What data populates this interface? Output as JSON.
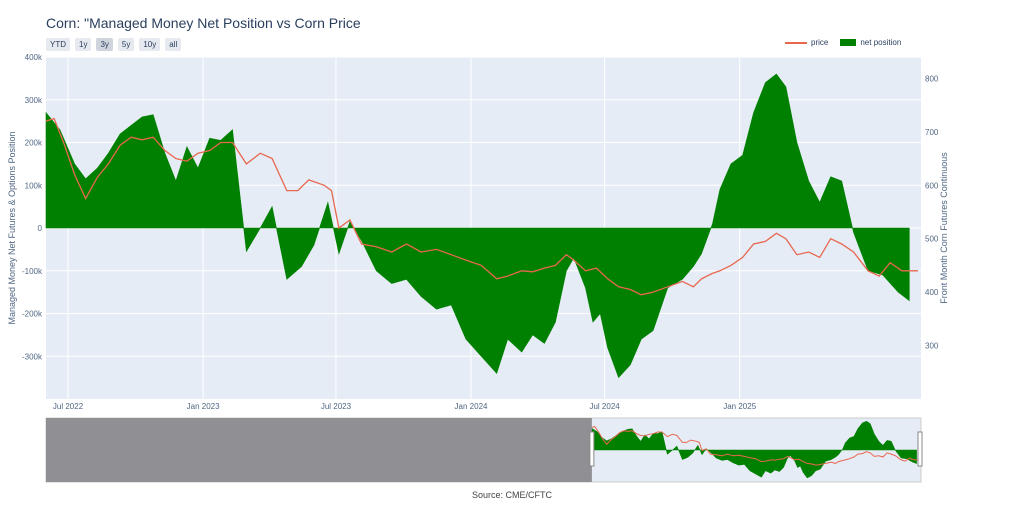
{
  "title": "Corn: \"Managed Money Net Position vs Corn Price",
  "range_buttons": [
    "YTD",
    "1y",
    "3y",
    "5y",
    "10y",
    "all"
  ],
  "active_range": "3y",
  "legend": {
    "price": "price",
    "net_position": "net position"
  },
  "source": "Source: CME/CFTC",
  "colors": {
    "price": "#e8674f",
    "net_position": "#008000",
    "plot_bg": "#e5ecf6",
    "grid": "#ffffff"
  },
  "chart_data": {
    "type": "area",
    "x_axis": {
      "type": "date",
      "range": [
        "2022-06-01",
        "2025-09-05"
      ],
      "ticks": [
        "2022-07-01",
        "2023-01-01",
        "2023-07-01",
        "2024-01-01",
        "2024-07-01",
        "2025-01-01"
      ],
      "tick_labels": [
        "Jul 2022",
        "Jan 2023",
        "Jul 2023",
        "Jan 2024",
        "Jul 2024",
        "Jan 2025"
      ]
    },
    "y_left": {
      "label": "Managed Money Net Futures & Options Position",
      "range": [
        -400000,
        400000
      ],
      "ticks": [
        -300000,
        -200000,
        -100000,
        0,
        100000,
        200000,
        300000,
        400000
      ],
      "tick_labels": [
        "-300k",
        "-200k",
        "-100k",
        "0",
        "100k",
        "200k",
        "300k",
        "400k"
      ]
    },
    "y_right": {
      "label": "Front Month Corn Futures Continuous",
      "range": [
        200,
        840
      ],
      "ticks": [
        300,
        400,
        500,
        600,
        700,
        800
      ],
      "tick_labels": [
        "300",
        "400",
        "500",
        "600",
        "700",
        "800"
      ]
    },
    "grid": true,
    "legend_position": "top-right",
    "series": [
      {
        "name": "net position",
        "kind": "area",
        "axis": "left",
        "points": [
          [
            "2022-06-01",
            270000
          ],
          [
            "2022-06-20",
            230000
          ],
          [
            "2022-07-10",
            150000
          ],
          [
            "2022-07-25",
            115000
          ],
          [
            "2022-08-10",
            140000
          ],
          [
            "2022-08-25",
            175000
          ],
          [
            "2022-09-10",
            220000
          ],
          [
            "2022-09-25",
            240000
          ],
          [
            "2022-10-10",
            260000
          ],
          [
            "2022-10-25",
            265000
          ],
          [
            "2022-11-10",
            175000
          ],
          [
            "2022-11-25",
            110000
          ],
          [
            "2022-12-10",
            190000
          ],
          [
            "2022-12-25",
            140000
          ],
          [
            "2023-01-10",
            210000
          ],
          [
            "2023-01-25",
            205000
          ],
          [
            "2023-02-10",
            230000
          ],
          [
            "2023-02-20",
            80000
          ],
          [
            "2023-03-01",
            -55000
          ],
          [
            "2023-03-20",
            0
          ],
          [
            "2023-04-05",
            50000
          ],
          [
            "2023-04-25",
            -120000
          ],
          [
            "2023-05-15",
            -90000
          ],
          [
            "2023-06-01",
            -40000
          ],
          [
            "2023-06-20",
            60000
          ],
          [
            "2023-07-05",
            -60000
          ],
          [
            "2023-07-20",
            15000
          ],
          [
            "2023-08-05",
            -30000
          ],
          [
            "2023-08-25",
            -100000
          ],
          [
            "2023-09-15",
            -130000
          ],
          [
            "2023-10-05",
            -120000
          ],
          [
            "2023-10-25",
            -160000
          ],
          [
            "2023-11-15",
            -190000
          ],
          [
            "2023-12-05",
            -180000
          ],
          [
            "2023-12-25",
            -260000
          ],
          [
            "2024-01-15",
            -300000
          ],
          [
            "2024-02-05",
            -340000
          ],
          [
            "2024-02-20",
            -260000
          ],
          [
            "2024-03-10",
            -290000
          ],
          [
            "2024-03-25",
            -250000
          ],
          [
            "2024-04-10",
            -270000
          ],
          [
            "2024-04-25",
            -220000
          ],
          [
            "2024-05-10",
            -100000
          ],
          [
            "2024-05-20",
            -70000
          ],
          [
            "2024-06-05",
            -140000
          ],
          [
            "2024-06-15",
            -220000
          ],
          [
            "2024-06-25",
            -200000
          ],
          [
            "2024-07-05",
            -280000
          ],
          [
            "2024-07-20",
            -350000
          ],
          [
            "2024-08-05",
            -320000
          ],
          [
            "2024-08-20",
            -260000
          ],
          [
            "2024-09-05",
            -240000
          ],
          [
            "2024-09-25",
            -140000
          ],
          [
            "2024-10-15",
            -120000
          ],
          [
            "2024-10-30",
            -90000
          ],
          [
            "2024-11-10",
            -60000
          ],
          [
            "2024-11-25",
            10000
          ],
          [
            "2024-12-05",
            90000
          ],
          [
            "2024-12-20",
            150000
          ],
          [
            "2025-01-05",
            170000
          ],
          [
            "2025-01-20",
            270000
          ],
          [
            "2025-02-05",
            340000
          ],
          [
            "2025-02-20",
            360000
          ],
          [
            "2025-03-05",
            330000
          ],
          [
            "2025-03-20",
            200000
          ],
          [
            "2025-04-05",
            110000
          ],
          [
            "2025-04-20",
            60000
          ],
          [
            "2025-05-05",
            120000
          ],
          [
            "2025-05-20",
            110000
          ],
          [
            "2025-06-05",
            -10000
          ],
          [
            "2025-06-25",
            -100000
          ],
          [
            "2025-07-15",
            -110000
          ],
          [
            "2025-08-05",
            -150000
          ],
          [
            "2025-08-20",
            -170000
          ]
        ]
      },
      {
        "name": "price",
        "kind": "line",
        "axis": "right",
        "points": [
          [
            "2022-06-01",
            720
          ],
          [
            "2022-06-12",
            725
          ],
          [
            "2022-06-25",
            680
          ],
          [
            "2022-07-10",
            620
          ],
          [
            "2022-07-25",
            575
          ],
          [
            "2022-08-10",
            615
          ],
          [
            "2022-08-25",
            640
          ],
          [
            "2022-09-10",
            675
          ],
          [
            "2022-09-25",
            690
          ],
          [
            "2022-10-10",
            685
          ],
          [
            "2022-10-25",
            690
          ],
          [
            "2022-11-10",
            665
          ],
          [
            "2022-11-25",
            650
          ],
          [
            "2022-12-10",
            645
          ],
          [
            "2022-12-25",
            660
          ],
          [
            "2023-01-10",
            665
          ],
          [
            "2023-01-25",
            680
          ],
          [
            "2023-02-10",
            680
          ],
          [
            "2023-03-01",
            640
          ],
          [
            "2023-03-20",
            660
          ],
          [
            "2023-04-05",
            650
          ],
          [
            "2023-04-25",
            590
          ],
          [
            "2023-05-10",
            590
          ],
          [
            "2023-05-25",
            610
          ],
          [
            "2023-06-15",
            600
          ],
          [
            "2023-06-25",
            590
          ],
          [
            "2023-07-05",
            520
          ],
          [
            "2023-07-20",
            535
          ],
          [
            "2023-08-05",
            490
          ],
          [
            "2023-08-25",
            485
          ],
          [
            "2023-09-15",
            475
          ],
          [
            "2023-10-05",
            490
          ],
          [
            "2023-10-25",
            475
          ],
          [
            "2023-11-15",
            480
          ],
          [
            "2023-12-05",
            470
          ],
          [
            "2023-12-25",
            460
          ],
          [
            "2024-01-15",
            450
          ],
          [
            "2024-02-05",
            425
          ],
          [
            "2024-02-20",
            430
          ],
          [
            "2024-03-10",
            440
          ],
          [
            "2024-03-25",
            438
          ],
          [
            "2024-04-10",
            445
          ],
          [
            "2024-04-25",
            450
          ],
          [
            "2024-05-10",
            470
          ],
          [
            "2024-05-20",
            460
          ],
          [
            "2024-06-05",
            440
          ],
          [
            "2024-06-20",
            445
          ],
          [
            "2024-07-05",
            425
          ],
          [
            "2024-07-20",
            410
          ],
          [
            "2024-08-05",
            405
          ],
          [
            "2024-08-20",
            395
          ],
          [
            "2024-09-05",
            400
          ],
          [
            "2024-09-25",
            410
          ],
          [
            "2024-10-15",
            420
          ],
          [
            "2024-10-30",
            410
          ],
          [
            "2024-11-10",
            425
          ],
          [
            "2024-11-25",
            435
          ],
          [
            "2024-12-05",
            440
          ],
          [
            "2024-12-20",
            450
          ],
          [
            "2025-01-05",
            465
          ],
          [
            "2025-01-20",
            490
          ],
          [
            "2025-02-05",
            495
          ],
          [
            "2025-02-20",
            510
          ],
          [
            "2025-03-05",
            500
          ],
          [
            "2025-03-20",
            470
          ],
          [
            "2025-04-05",
            475
          ],
          [
            "2025-04-20",
            465
          ],
          [
            "2025-05-05",
            500
          ],
          [
            "2025-05-20",
            490
          ],
          [
            "2025-06-05",
            475
          ],
          [
            "2025-06-25",
            440
          ],
          [
            "2025-07-10",
            430
          ],
          [
            "2025-07-25",
            455
          ],
          [
            "2025-08-10",
            440
          ],
          [
            "2025-09-01",
            440
          ]
        ]
      }
    ]
  }
}
